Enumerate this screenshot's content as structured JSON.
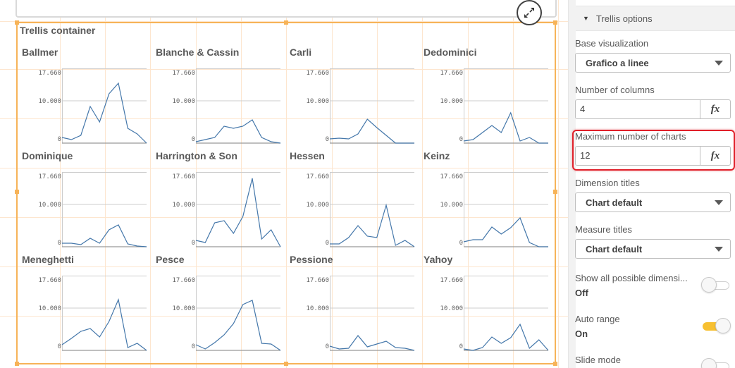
{
  "canvas": {
    "expand_icon": "expand-arrows-icon",
    "trellis": {
      "title": "Trellis container",
      "y_ticks": [
        "17.660",
        "10.000",
        "0"
      ],
      "line_color": "#4477aa",
      "selection_color": "#f7b358"
    }
  },
  "chart_data": {
    "type": "line",
    "title": "Trellis container",
    "layout": {
      "columns": 4,
      "rows": 3
    },
    "y_axis": {
      "ylim": [
        0,
        17660
      ],
      "tick_labels": [
        "0",
        "10.000",
        "17.660"
      ],
      "grid": true
    },
    "x_points": 10,
    "panels": [
      {
        "name": "Ballmer",
        "values": [
          1330,
          830,
          1830,
          8660,
          5000,
          11660,
          14160,
          3500,
          2170,
          0
        ]
      },
      {
        "name": "Blanche & Cassin",
        "values": [
          330,
          830,
          1330,
          4000,
          3500,
          4000,
          5500,
          1330,
          330,
          0
        ]
      },
      {
        "name": "Carli",
        "values": [
          1000,
          1170,
          1000,
          2170,
          5670,
          3670,
          1830,
          0,
          0,
          0
        ]
      },
      {
        "name": "Dedominici",
        "values": [
          500,
          830,
          2500,
          4170,
          2500,
          7170,
          500,
          1330,
          0,
          0
        ]
      },
      {
        "name": "Dominique",
        "values": [
          830,
          830,
          500,
          2000,
          830,
          4000,
          5170,
          670,
          170,
          0
        ]
      },
      {
        "name": "Harrington & Son",
        "values": [
          1500,
          1000,
          5670,
          6170,
          3170,
          7170,
          16170,
          1830,
          4000,
          0
        ]
      },
      {
        "name": "Hessen",
        "values": [
          670,
          670,
          2170,
          5000,
          2500,
          2170,
          9830,
          330,
          1500,
          0
        ]
      },
      {
        "name": "Keinz",
        "values": [
          1170,
          1670,
          1670,
          4670,
          3000,
          4500,
          6830,
          1000,
          0,
          0
        ]
      },
      {
        "name": "Meneghetti",
        "values": [
          1330,
          2830,
          4500,
          5170,
          3170,
          6830,
          12000,
          670,
          1670,
          0
        ]
      },
      {
        "name": "Pesce",
        "values": [
          1330,
          330,
          1830,
          3670,
          6330,
          10830,
          11830,
          1670,
          1500,
          0
        ]
      },
      {
        "name": "Pessione",
        "values": [
          1000,
          330,
          500,
          3500,
          830,
          1500,
          2170,
          670,
          500,
          0
        ]
      },
      {
        "name": "Yahoy",
        "values": [
          330,
          0,
          670,
          3170,
          1670,
          3000,
          6170,
          500,
          2500,
          0
        ]
      }
    ]
  },
  "panel": {
    "section_title": "Trellis options",
    "base_visualization": {
      "label": "Base visualization",
      "value": "Grafico a linee"
    },
    "number_of_columns": {
      "label": "Number of columns",
      "value": "4",
      "fx": "fx"
    },
    "max_charts": {
      "label": "Maximum number of charts",
      "value": "12",
      "fx": "fx"
    },
    "dimension_titles": {
      "label": "Dimension titles",
      "value": "Chart default"
    },
    "measure_titles": {
      "label": "Measure titles",
      "value": "Chart default"
    },
    "show_all_dimensions": {
      "label": "Show all possible dimensi...",
      "value": "Off"
    },
    "auto_range": {
      "label": "Auto range",
      "value": "On"
    },
    "slide_mode": {
      "label": "Slide mode"
    },
    "accent_toggle_color": "#f7c031",
    "highlight_color": "#e0202a"
  }
}
